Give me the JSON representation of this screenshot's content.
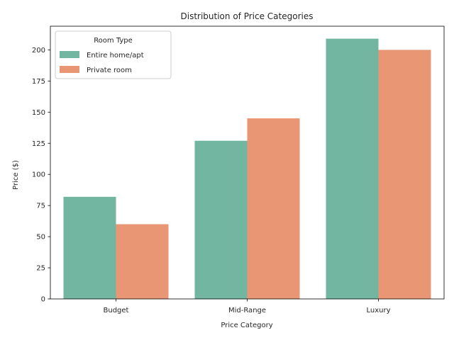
{
  "chart_data": {
    "type": "bar",
    "title": "Distribution of Price Categories",
    "xlabel": "Price Category",
    "ylabel": "Price ($)",
    "categories": [
      "Budget",
      "Mid-Range",
      "Luxury"
    ],
    "ylim": [
      0,
      219
    ],
    "yticks": [
      0,
      25,
      50,
      75,
      100,
      125,
      150,
      175,
      200
    ],
    "grid": false,
    "legend": {
      "title": "Room Type",
      "placement": "top-left"
    },
    "series": [
      {
        "name": "Entire home/apt",
        "color": "#72b6a1",
        "values": [
          82,
          127,
          209
        ]
      },
      {
        "name": "Private room",
        "color": "#e99675",
        "values": [
          60,
          145,
          200
        ]
      }
    ]
  }
}
